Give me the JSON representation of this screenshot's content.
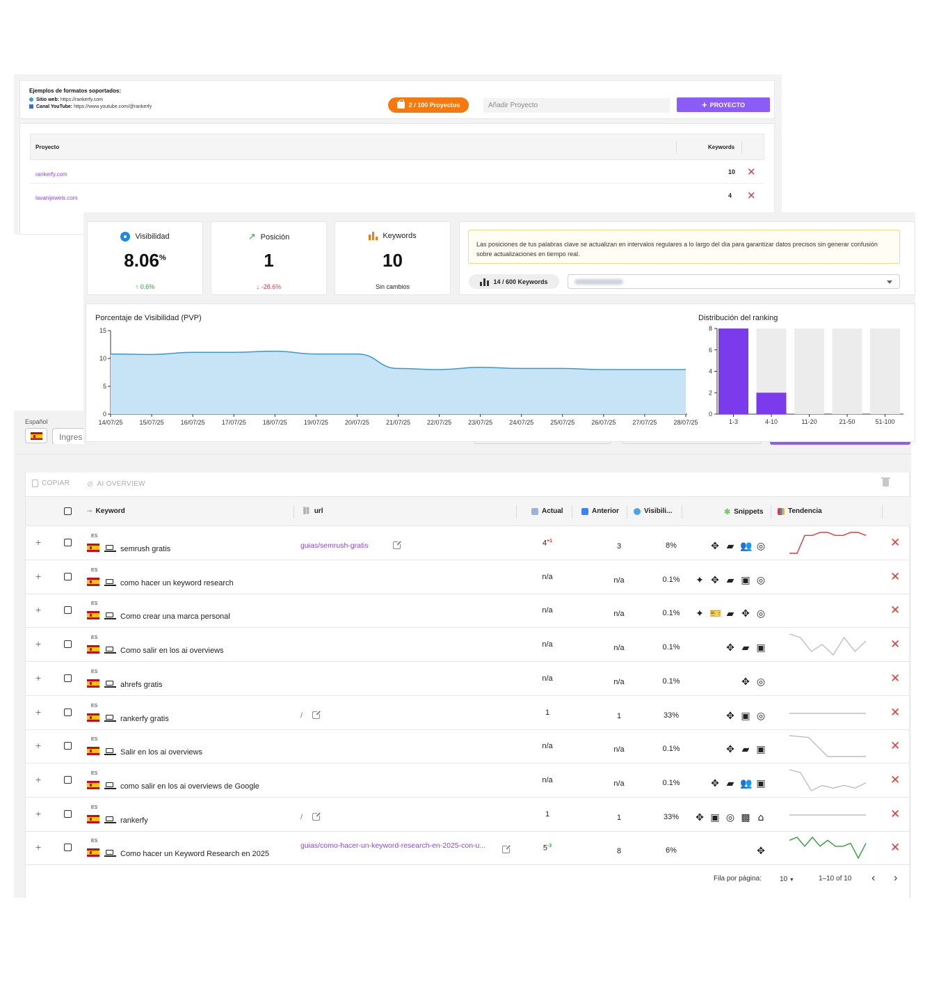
{
  "projects_panel": {
    "examples_title": "Ejemplos de formatos soportados:",
    "example_web_label": "Sitio web:",
    "example_web_value": "https://rankerfy.com",
    "example_yt_label": "Canal YouTube:",
    "example_yt_value": "https://www.youtube.com/@rankerfy",
    "projects_count": "2 / 100 Proyectos",
    "add_placeholder": "Añadir Proyecto",
    "add_button": "PROYECTO",
    "col_project": "Proyecto",
    "col_keywords": "Keywords",
    "rows": [
      {
        "name": "rankerfy.com",
        "keywords": "10"
      },
      {
        "name": "lavanijewels.com",
        "keywords": "4"
      }
    ]
  },
  "stats": {
    "visibility": {
      "label": "Visibilidad",
      "value": "8.06",
      "unit": "%",
      "change": "0.6%"
    },
    "position": {
      "label": "Posición",
      "value": "1",
      "change": "-28.6%"
    },
    "keywords": {
      "label": "Keywords",
      "value": "10",
      "change": "Sin cambios"
    }
  },
  "info": {
    "note": "Las posiciones de tus palabras clave se actualizan en intervalos regulares a lo largo del día para garantizar datos precisos sin generar confusión sobre actualizaciones en tiempo real.",
    "keyword_quota": "14 / 600 Keywords"
  },
  "chart_data": [
    {
      "type": "area",
      "title": "Porcentaje de Visibilidad (PVP)",
      "x": [
        "14/07/25",
        "15/07/25",
        "16/07/25",
        "17/07/25",
        "18/07/25",
        "19/07/25",
        "20/07/25",
        "21/07/25",
        "22/07/25",
        "23/07/25",
        "24/07/25",
        "25/07/25",
        "26/07/25",
        "27/07/25",
        "28/07/25"
      ],
      "values": [
        10.8,
        10.7,
        11.1,
        11.1,
        11.3,
        10.8,
        10.8,
        8.2,
        8.0,
        8.4,
        8.2,
        8.2,
        8.0,
        8.0,
        8.0
      ],
      "y_ticks": [
        "0",
        "5",
        "10",
        "15"
      ],
      "ylim": [
        0,
        15
      ],
      "colors": {
        "fill": "#c7e4f6",
        "line": "#3a97d4"
      }
    },
    {
      "type": "bar",
      "title": "Distribución del ranking",
      "categories": [
        "1-3",
        "4-10",
        "11-20",
        "21-50",
        "51-100"
      ],
      "values": [
        8,
        2,
        0,
        0,
        0
      ],
      "y_ticks": [
        "0",
        "2",
        "4",
        "6",
        "8"
      ],
      "ylim": [
        0,
        8
      ],
      "colors": {
        "bar": "#7c3aed",
        "track": "#ececed"
      }
    }
  ],
  "filters": {
    "language_label": "Español",
    "search_placeholder": "Ingres"
  },
  "keyword_table": {
    "toolbar": {
      "copy": "COPIAR",
      "ai_overview": "AI OVERVIEW"
    },
    "headers": {
      "keyword": "Keyword",
      "url": "url",
      "actual": "Actual",
      "anterior": "Anterior",
      "visibility": "Visibili...",
      "snippets": "Snippets",
      "trend": "Tendencia"
    },
    "rows": [
      {
        "lang": "ES",
        "keyword": "semrush gratis",
        "url": "guias/semrush-gratis",
        "actual": "4",
        "delta": "+1",
        "delta_color": "#e53935",
        "anterior": "3",
        "visibility": "8%",
        "snippets": [
          "nav",
          "chat",
          "people",
          "radar"
        ],
        "trend": [
          9,
          9,
          3,
          3,
          2,
          2,
          3,
          3,
          2,
          2,
          3
        ],
        "trend_color": "#e53935"
      },
      {
        "lang": "ES",
        "keyword": "como hacer un keyword research",
        "url": "",
        "actual": "n/a",
        "delta": "",
        "anterior": "n/a",
        "visibility": "0.1%",
        "snippets": [
          "sparkle",
          "nav",
          "chat",
          "image",
          "radar"
        ],
        "trend": [],
        "trend_color": "#bdbdbd"
      },
      {
        "lang": "ES",
        "keyword": "Como crear una marca personal",
        "url": "",
        "actual": "n/a",
        "delta": "",
        "anterior": "n/a",
        "visibility": "0.1%",
        "snippets": [
          "sparkle",
          "ticket",
          "chat",
          "nav",
          "radar"
        ],
        "trend": [],
        "trend_color": "#bdbdbd"
      },
      {
        "lang": "ES",
        "keyword": "Como salir en los ai overviews",
        "url": "",
        "actual": "n/a",
        "delta": "",
        "anterior": "n/a",
        "visibility": "0.1%",
        "snippets": [
          "nav",
          "chat",
          "image"
        ],
        "trend": [
          2,
          3,
          7,
          5,
          8,
          3,
          7,
          4
        ],
        "trend_color": "#bdbdbd"
      },
      {
        "lang": "ES",
        "keyword": "ahrefs gratis",
        "url": "",
        "actual": "n/a",
        "delta": "",
        "anterior": "n/a",
        "visibility": "0.1%",
        "snippets": [
          "nav",
          "radar"
        ],
        "trend": [],
        "trend_color": "#bdbdbd"
      },
      {
        "lang": "ES",
        "keyword": "rankerfy gratis",
        "url": "/",
        "actual": "1",
        "delta": "",
        "anterior": "1",
        "visibility": "33%",
        "snippets": [
          "nav",
          "image",
          "radar"
        ],
        "trend": [
          5,
          5,
          5,
          5,
          5
        ],
        "trend_color": "#bdbdbd"
      },
      {
        "lang": "ES",
        "keyword": "Salir en los ai overviews",
        "url": "",
        "actual": "n/a",
        "delta": "",
        "anterior": "n/a",
        "visibility": "0.1%",
        "snippets": [
          "nav",
          "chat",
          "image"
        ],
        "trend": [
          2,
          2.5,
          8,
          8,
          8
        ],
        "trend_color": "#bdbdbd"
      },
      {
        "lang": "ES",
        "keyword": "como salir en los ai overviews de Google",
        "url": "",
        "actual": "n/a",
        "delta": "",
        "anterior": "n/a",
        "visibility": "0.1%",
        "snippets": [
          "nav",
          "chat",
          "people",
          "image"
        ],
        "trend": [
          1,
          2,
          9,
          7,
          8,
          7,
          8,
          6
        ],
        "trend_color": "#bdbdbd"
      },
      {
        "lang": "ES",
        "keyword": "rankerfy",
        "url": "/",
        "actual": "1",
        "delta": "",
        "anterior": "1",
        "visibility": "33%",
        "snippets": [
          "nav",
          "image",
          "radar",
          "chatplus",
          "school"
        ],
        "trend": [
          5,
          5,
          5,
          5,
          5
        ],
        "trend_color": "#bdbdbd"
      },
      {
        "lang": "ES",
        "keyword": "Como hacer un Keyword Research en 2025",
        "url": "guias/como-hacer-un-keyword-research-en-2025-con-u...",
        "actual": "5",
        "delta": "-3",
        "delta_color": "#43a047",
        "anterior": "8",
        "visibility": "6%",
        "snippets": [
          "nav"
        ],
        "trend": [
          3,
          2,
          5,
          2,
          5,
          3,
          5,
          5,
          4,
          9,
          4
        ],
        "trend_color": "#2e9e3a"
      }
    ],
    "pagination": {
      "rows_label": "Fila por página:",
      "rows_value": "10",
      "range": "1–10 of 10"
    }
  }
}
